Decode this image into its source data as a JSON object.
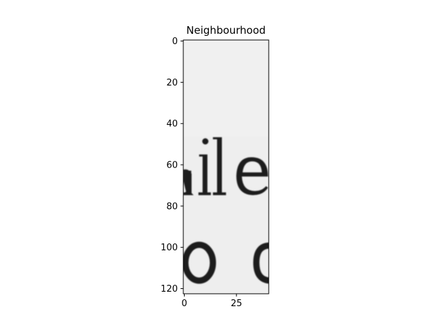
{
  "chart_data": {
    "type": "heatmap",
    "title": "Neighbourhood",
    "xlabel": "",
    "ylabel": "",
    "colormap": "gray",
    "image_shape": [
      123,
      41
    ],
    "xlim": [
      -0.5,
      40.5
    ],
    "ylim": [
      122.5,
      -0.5
    ],
    "x_ticks": [
      0,
      25
    ],
    "x_tick_labels": [
      "0",
      "25"
    ],
    "y_ticks": [
      0,
      20,
      40,
      60,
      80,
      100,
      120
    ],
    "y_tick_labels": [
      "0",
      "20",
      "40",
      "60",
      "80",
      "100",
      "120"
    ],
    "grid": false,
    "image_content": {
      "background": "#eeeeee",
      "ink": "#1e1e1e",
      "glyph_rows": [
        {
          "text": "aile",
          "baseline_y": 72
        },
        {
          "text": "o c",
          "baseline_y": 115
        }
      ]
    }
  }
}
